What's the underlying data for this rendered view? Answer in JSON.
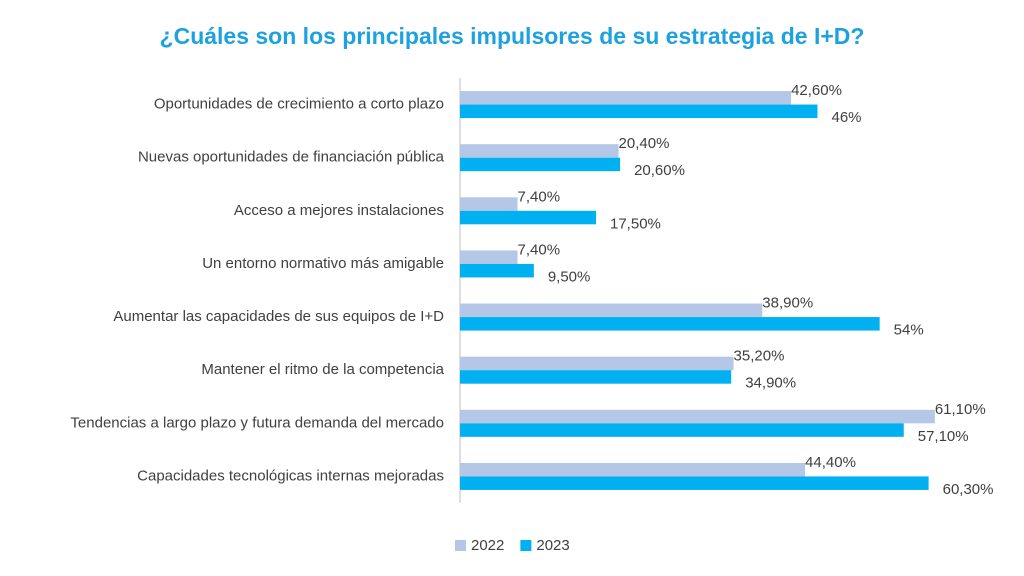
{
  "chart_data": {
    "type": "hbar",
    "title": "¿Cuáles son los principales impulsores de su estrategia de I+D?",
    "categories": [
      "Oportunidades de crecimiento a corto plazo",
      "Nuevas oportunidades de financiación pública",
      "Acceso a mejores instalaciones",
      "Un entorno normativo más amigable",
      "Aumentar las capacidades de sus equipos de I+D",
      "Mantener el ritmo de la competencia",
      "Tendencias a largo plazo y futura demanda del mercado",
      "Capacidades tecnológicas internas mejoradas"
    ],
    "series": [
      {
        "name": "2022",
        "color": "#b4c7e7",
        "values": [
          42.6,
          20.4,
          7.4,
          7.4,
          38.9,
          35.2,
          61.1,
          44.4
        ],
        "value_labels": [
          "42,60%",
          "20,40%",
          "7,40%",
          "7,40%",
          "38,90%",
          "35,20%",
          "61,10%",
          "44,40%"
        ]
      },
      {
        "name": "2023",
        "color": "#00b0f0",
        "values": [
          46,
          20.6,
          17.5,
          9.5,
          54,
          34.9,
          57.1,
          60.3
        ],
        "value_labels": [
          "46%",
          "20,60%",
          "17,50%",
          "9,50%",
          "54%",
          "34,90%",
          "57,10%",
          "60,30%"
        ]
      }
    ],
    "xlim": [
      0,
      70
    ],
    "legend": "bottom"
  }
}
